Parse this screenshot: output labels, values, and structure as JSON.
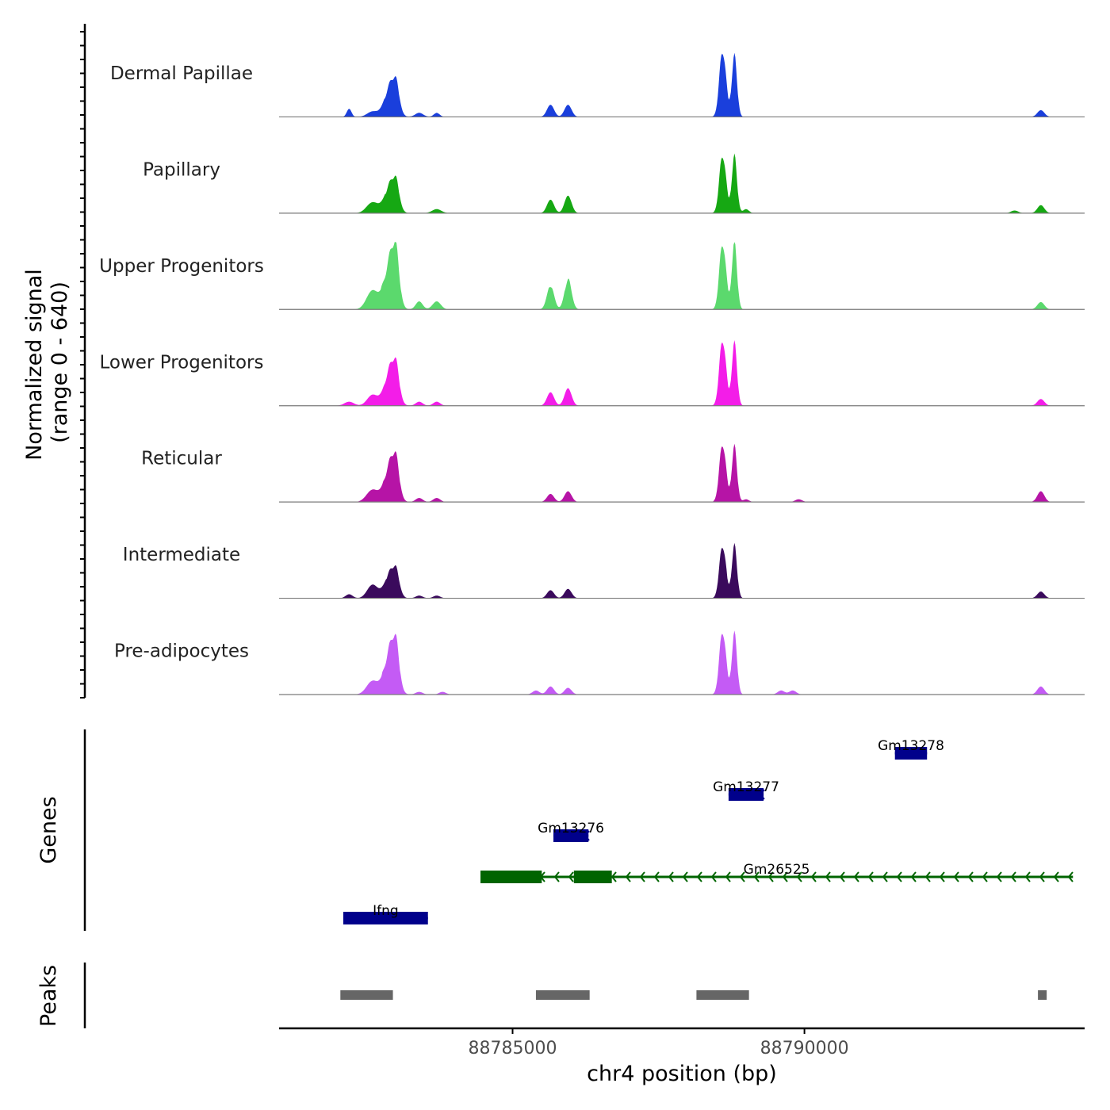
{
  "chart_data": {
    "type": "area",
    "title": "",
    "region": "chr4",
    "xlabel": "chr4 position (bp)",
    "xlim": [
      88781000,
      88794800
    ],
    "xticks": [
      88785000,
      88790000
    ],
    "xtick_labels": [
      "88785000",
      "88790000"
    ],
    "coverage": {
      "ylabel_line1": "Normalized signal",
      "ylabel_line2": "(range 0 - 640)",
      "ylim": [
        0,
        640
      ],
      "series": [
        {
          "name": "Dermal Papillae",
          "color": "#1a3fdc",
          "peaks": [
            [
              88782200,
              120,
              40
            ],
            [
              88782600,
              80,
              90
            ],
            [
              88782900,
              420,
              100
            ],
            [
              88783000,
              320,
              60
            ],
            [
              88783400,
              60,
              70
            ],
            [
              88783700,
              60,
              50
            ],
            [
              88785650,
              180,
              60
            ],
            [
              88785950,
              180,
              60
            ],
            [
              88788600,
              1000,
              55
            ],
            [
              88788800,
              880,
              45
            ],
            [
              88794050,
              100,
              60
            ]
          ]
        },
        {
          "name": "Papillary",
          "color": "#16a813",
          "peaks": [
            [
              88782600,
              160,
              100
            ],
            [
              88782900,
              380,
              100
            ],
            [
              88783000,
              300,
              60
            ],
            [
              88783700,
              60,
              80
            ],
            [
              88785650,
              200,
              60
            ],
            [
              88785950,
              260,
              60
            ],
            [
              88788600,
              880,
              55
            ],
            [
              88788800,
              820,
              45
            ],
            [
              88789000,
              60,
              50
            ],
            [
              88793600,
              40,
              60
            ],
            [
              88794050,
              120,
              60
            ]
          ]
        },
        {
          "name": "Upper Progenitors",
          "color": "#5bd96d",
          "peaks": [
            [
              88782600,
              280,
              100
            ],
            [
              88782900,
              680,
              100
            ],
            [
              88783000,
              560,
              60
            ],
            [
              88783400,
              120,
              60
            ],
            [
              88783700,
              120,
              70
            ],
            [
              88785650,
              360,
              60
            ],
            [
              88785950,
              440,
              60
            ],
            [
              88788600,
              1000,
              55
            ],
            [
              88788800,
              960,
              45
            ],
            [
              88794050,
              110,
              60
            ]
          ]
        },
        {
          "name": "Lower Progenitors",
          "color": "#f31de8",
          "peaks": [
            [
              88782200,
              60,
              80
            ],
            [
              88782600,
              160,
              90
            ],
            [
              88782900,
              500,
              100
            ],
            [
              88783000,
              380,
              60
            ],
            [
              88783400,
              60,
              60
            ],
            [
              88783700,
              60,
              60
            ],
            [
              88785650,
              200,
              60
            ],
            [
              88785950,
              260,
              60
            ],
            [
              88788600,
              1000,
              55
            ],
            [
              88788800,
              900,
              45
            ],
            [
              88794050,
              100,
              60
            ]
          ]
        },
        {
          "name": "Reticular",
          "color": "#b614a6",
          "peaks": [
            [
              88782600,
              180,
              100
            ],
            [
              88782900,
              520,
              100
            ],
            [
              88783000,
              400,
              60
            ],
            [
              88783400,
              60,
              60
            ],
            [
              88783700,
              60,
              60
            ],
            [
              88785650,
              120,
              60
            ],
            [
              88785950,
              160,
              60
            ],
            [
              88788600,
              880,
              55
            ],
            [
              88788800,
              800,
              45
            ],
            [
              88789000,
              40,
              50
            ],
            [
              88789900,
              40,
              60
            ],
            [
              88794050,
              160,
              60
            ]
          ]
        },
        {
          "name": "Intermediate",
          "color": "#3a0a5c",
          "peaks": [
            [
              88782200,
              60,
              60
            ],
            [
              88782600,
              200,
              90
            ],
            [
              88782900,
              340,
              100
            ],
            [
              88783000,
              260,
              60
            ],
            [
              88783400,
              40,
              60
            ],
            [
              88783700,
              40,
              60
            ],
            [
              88785650,
              120,
              60
            ],
            [
              88785950,
              140,
              60
            ],
            [
              88788600,
              800,
              55
            ],
            [
              88788800,
              760,
              45
            ],
            [
              88794050,
              100,
              60
            ]
          ]
        },
        {
          "name": "Pre-adipocytes",
          "color": "#c45bf5",
          "peaks": [
            [
              88782600,
              200,
              100
            ],
            [
              88782900,
              620,
              100
            ],
            [
              88783000,
              480,
              60
            ],
            [
              88783400,
              40,
              60
            ],
            [
              88783800,
              40,
              60
            ],
            [
              88785400,
              60,
              60
            ],
            [
              88785650,
              120,
              60
            ],
            [
              88785950,
              100,
              60
            ],
            [
              88788600,
              960,
              55
            ],
            [
              88788800,
              880,
              45
            ],
            [
              88789600,
              60,
              60
            ],
            [
              88789800,
              60,
              60
            ],
            [
              88794050,
              120,
              60
            ]
          ]
        }
      ]
    },
    "genes": {
      "ylabel": "Genes",
      "items": [
        {
          "name": "Gm13278",
          "start": 88791550,
          "end": 88792100,
          "strand": "-",
          "color": "#00008b",
          "row": 0,
          "exons": [
            [
              88791550,
              88792100
            ]
          ]
        },
        {
          "name": "Gm13277",
          "start": 88788700,
          "end": 88789300,
          "strand": "-",
          "color": "#00008b",
          "row": 1,
          "exons": [
            [
              88788700,
              88789300
            ]
          ]
        },
        {
          "name": "Gm13276",
          "start": 88785700,
          "end": 88786300,
          "strand": "-",
          "color": "#00008b",
          "row": 2,
          "exons": [
            [
              88785700,
              88786300
            ]
          ]
        },
        {
          "name": "Gm26525",
          "start": 88784450,
          "end": 88794600,
          "strand": "-",
          "color": "#006400",
          "row": 3,
          "exons": [
            [
              88784450,
              88785500
            ],
            [
              88786050,
              88786700
            ]
          ]
        },
        {
          "name": "Ifng",
          "start": 88782100,
          "end": 88783550,
          "strand": "-",
          "color": "#00008b",
          "row": 4,
          "exons": [
            [
              88782100,
              88783550
            ]
          ]
        }
      ]
    },
    "peaks": {
      "ylabel": "Peaks",
      "color": "#666666",
      "ranges": [
        [
          88782050,
          88782950
        ],
        [
          88785400,
          88786320
        ],
        [
          88788150,
          88789050
        ],
        [
          88794000,
          88794150
        ]
      ]
    }
  }
}
